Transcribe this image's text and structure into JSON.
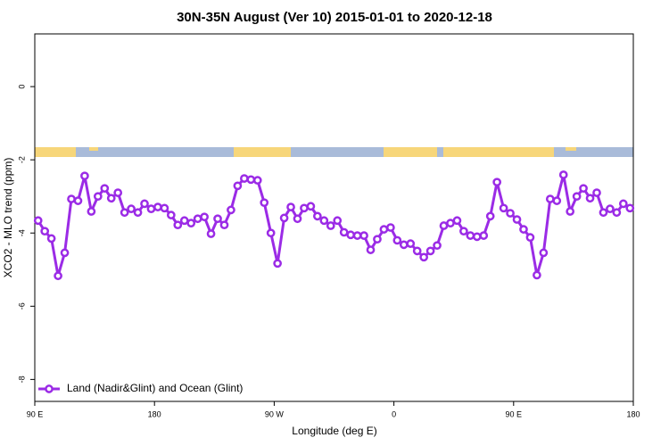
{
  "chart_data": {
    "type": "line",
    "title": "30N-35N August (Ver 10)   2015-01-01 to 2020-12-18",
    "x_label": "Longitude (deg E)",
    "y_label": "XCO2 - MLO trend (ppm)",
    "xlim": [
      90,
      540
    ],
    "xticks": [
      {
        "value": 90,
        "label": "90 E"
      },
      180,
      {
        "value": 270,
        "label": "90 W"
      },
      {
        "value": 360,
        "label": "0"
      },
      {
        "value": 450,
        "label": "90 E"
      },
      {
        "value": 540,
        "label": "180"
      }
    ],
    "ylim": [
      -8.6,
      1.44
    ],
    "yticks": [
      0,
      -2,
      -4,
      -6,
      -8
    ],
    "legend": "bottom-left",
    "x": [
      92.5,
      97.5,
      102.5,
      107.5,
      112.5,
      117.5,
      122.5,
      127.5,
      132.5,
      137.5,
      142.5,
      147.5,
      152.5,
      157.5,
      162.5,
      167.5,
      172.5,
      177.5,
      182.5,
      187.5,
      192.5,
      197.5,
      202.5,
      207.5,
      212.5,
      217.5,
      222.5,
      227.5,
      232.5,
      237.5,
      242.5,
      247.5,
      252.5,
      257.5,
      262.5,
      267.5,
      272.5,
      277.5,
      282.5,
      287.5,
      292.5,
      297.5,
      302.5,
      307.5,
      312.5,
      317.5,
      322.5,
      327.5,
      332.5,
      337.5,
      342.5,
      347.5,
      352.5,
      357.5,
      362.5,
      367.5,
      372.5,
      377.5,
      382.5,
      387.5,
      392.5,
      397.5,
      402.5,
      407.5,
      412.5,
      417.5,
      422.5,
      427.5,
      432.5,
      437.5,
      442.5,
      447.5,
      452.5,
      457.5,
      462.5,
      467.5,
      472.5,
      477.5,
      482.5,
      487.5,
      492.5,
      497.5,
      502.5,
      507.5,
      512.5,
      517.5,
      522.5,
      527.5,
      532.5,
      537.5
    ],
    "series": [
      {
        "name": "Land (Nadir&Glint) and Ocean (Glint)",
        "color": "#9b2be6",
        "values": [
          -3.66,
          -3.95,
          -4.15,
          -5.17,
          -4.54,
          -3.07,
          -3.12,
          -2.44,
          -3.41,
          -3.0,
          -2.78,
          -3.05,
          -2.9,
          -3.44,
          -3.34,
          -3.44,
          -3.2,
          -3.34,
          -3.29,
          -3.32,
          -3.51,
          -3.78,
          -3.66,
          -3.73,
          -3.61,
          -3.56,
          -4.02,
          -3.61,
          -3.78,
          -3.37,
          -2.71,
          -2.51,
          -2.54,
          -2.56,
          -3.17,
          -4.0,
          -4.83,
          -3.59,
          -3.29,
          -3.61,
          -3.32,
          -3.27,
          -3.54,
          -3.66,
          -3.8,
          -3.66,
          -3.98,
          -4.05,
          -4.07,
          -4.07,
          -4.46,
          -4.17,
          -3.9,
          -3.85,
          -4.2,
          -4.32,
          -4.29,
          -4.49,
          -4.66,
          -4.49,
          -4.34,
          -3.8,
          -3.73,
          -3.66,
          -3.95,
          -4.07,
          -4.1,
          -4.07,
          -3.54,
          -2.61,
          -3.32,
          -3.46,
          -3.63,
          -3.9,
          -4.12,
          -5.15,
          -4.54,
          -3.07,
          -3.12,
          -2.41,
          -3.41,
          -3.0,
          -2.78,
          -3.05,
          -2.9,
          -3.44,
          -3.34,
          -3.44,
          -3.2,
          -3.32
        ]
      }
    ]
  }
}
